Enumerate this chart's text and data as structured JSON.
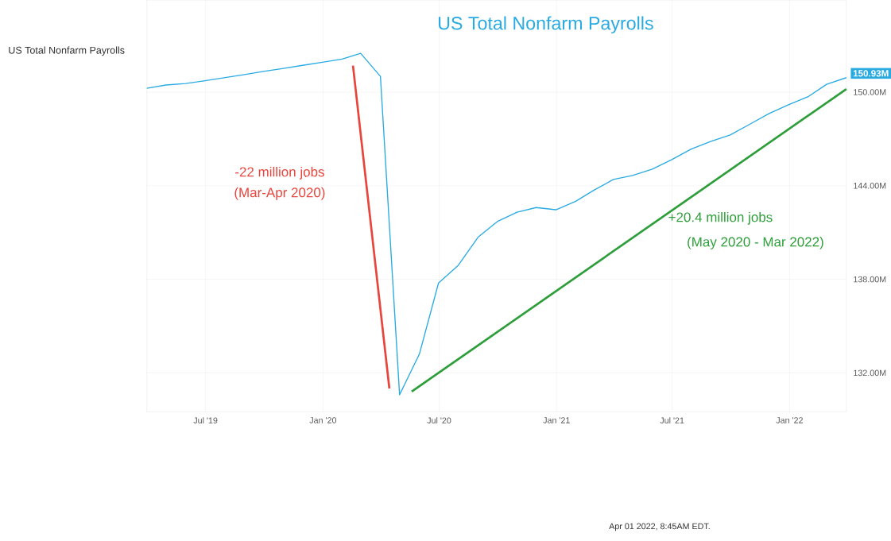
{
  "chart_data": {
    "type": "line",
    "title": "US Total Nonfarm Payrolls",
    "subtitle": "US Total Nonfarm Payrolls",
    "annotations": [
      "-22 million jobs",
      "(Mar-Apr 2020)",
      "+20.4 million jobs",
      "(May 2020 - Mar 2022)",
      "Apr 01 2022, 8:45AM EDT.",
      {
        "text": "150.93M",
        "x": "2022-03-31",
        "y": 150.93
      }
    ],
    "series": [
      {
        "color": "#29abe2",
        "x": [
          "2019-03-31",
          "2019-04-30",
          "2019-05-31",
          "2019-06-30",
          "2019-07-31",
          "2019-08-31",
          "2019-09-30",
          "2019-10-31",
          "2019-11-30",
          "2019-12-31",
          "2020-01-31",
          "2020-02-29",
          "2020-03-31",
          "2020-04-30",
          "2020-05-31",
          "2020-06-30",
          "2020-07-31",
          "2020-08-31",
          "2020-09-30",
          "2020-10-31",
          "2020-11-30",
          "2020-12-31",
          "2021-01-31",
          "2021-02-28",
          "2021-03-31",
          "2021-04-30",
          "2021-05-31",
          "2021-06-30",
          "2021-07-31",
          "2021-08-31",
          "2021-09-30",
          "2021-10-31",
          "2021-11-30",
          "2021-12-31",
          "2022-01-31",
          "2022-02-28",
          "2022-03-31"
        ],
        "values": [
          150.25,
          150.46,
          150.55,
          150.73,
          150.93,
          151.13,
          151.33,
          151.52,
          151.72,
          151.92,
          152.12,
          152.49,
          151.01,
          130.6,
          133.2,
          137.76,
          138.9,
          140.7,
          141.7,
          142.3,
          142.6,
          142.46,
          143.0,
          143.7,
          144.4,
          144.66,
          145.07,
          145.66,
          146.35,
          146.85,
          147.26,
          147.95,
          148.63,
          149.2,
          149.73,
          150.5,
          150.93
        ]
      },
      {
        "color": "#e8453c",
        "x": [
          "2020-02-17",
          "2020-04-14"
        ],
        "values": [
          151.7,
          131.0
        ]
      },
      {
        "color": "#2e9e3a",
        "x": [
          "2020-05-19",
          "2022-03-31"
        ],
        "values": [
          130.8,
          150.2
        ]
      }
    ],
    "xlim": [
      "2019-03-31",
      "2022-03-31"
    ],
    "ylim": [
      129.5,
      155.9
    ],
    "xticks": [
      {
        "value": "2019-07-01",
        "label": "Jul '19"
      },
      {
        "value": "2020-01-01",
        "label": "Jan '20"
      },
      {
        "value": "2020-07-01",
        "label": "Jul '20"
      },
      {
        "value": "2021-01-01",
        "label": "Jan '21"
      },
      {
        "value": "2021-07-01",
        "label": "Jul '21"
      },
      {
        "value": "2022-01-01",
        "label": "Jan '22"
      }
    ],
    "yticks": [
      {
        "value": 132,
        "label": "132.00M"
      },
      {
        "value": 138,
        "label": "138.00M"
      },
      {
        "value": 144,
        "label": "144.00M"
      },
      {
        "value": 150,
        "label": "150.00M"
      }
    ],
    "grid": true
  }
}
